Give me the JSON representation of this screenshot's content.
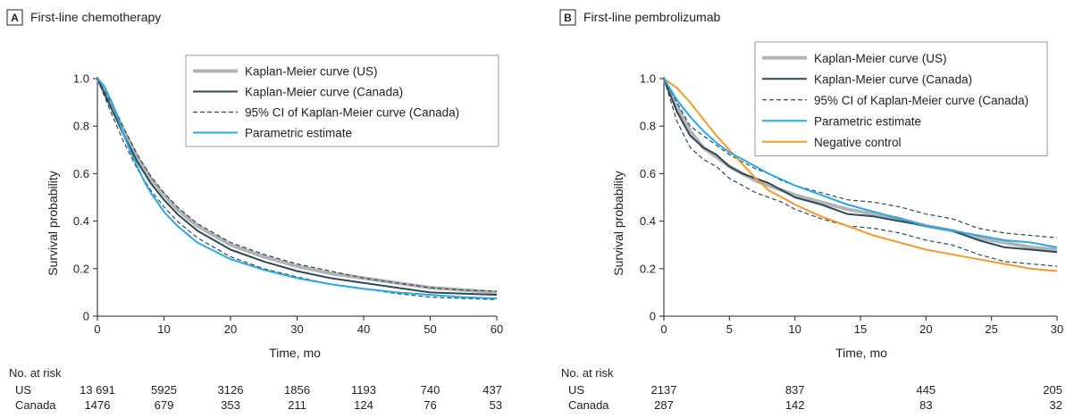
{
  "colors": {
    "us": "#b3b3b3",
    "canada": "#2c4a57",
    "ci": "#2c4a57",
    "parametric": "#29a9e0",
    "negative": "#f39a2b"
  },
  "chart_data": [
    {
      "type": "line",
      "panel_label": "A",
      "title": "First-line chemotherapy",
      "xlabel": "Time, mo",
      "ylabel": "Survival probability",
      "xlim": [
        0,
        60
      ],
      "ylim": [
        0,
        1.0
      ],
      "xticks": [
        0,
        10,
        20,
        30,
        40,
        50,
        60
      ],
      "yticks": [
        0,
        0.2,
        0.4,
        0.6,
        0.8,
        1.0
      ],
      "ytick_labels": [
        "0",
        "0.2",
        "0.4",
        "0.6",
        "0.8",
        "1.0"
      ],
      "legend_position": "top-right",
      "series": [
        {
          "name": "Kaplan-Meier curve (US)",
          "key": "us",
          "style": "thick",
          "x": [
            0,
            2,
            4,
            6,
            8,
            10,
            12,
            15,
            20,
            25,
            30,
            35,
            40,
            45,
            50,
            55,
            60
          ],
          "y": [
            1.0,
            0.9,
            0.78,
            0.67,
            0.58,
            0.51,
            0.45,
            0.38,
            0.3,
            0.25,
            0.21,
            0.18,
            0.16,
            0.14,
            0.12,
            0.11,
            0.1
          ]
        },
        {
          "name": "Kaplan-Meier curve (Canada)",
          "key": "canada",
          "style": "solid",
          "x": [
            0,
            2,
            4,
            6,
            8,
            10,
            12,
            15,
            20,
            25,
            30,
            35,
            40,
            45,
            50,
            55,
            60
          ],
          "y": [
            1.0,
            0.88,
            0.76,
            0.65,
            0.56,
            0.49,
            0.43,
            0.36,
            0.28,
            0.23,
            0.19,
            0.16,
            0.14,
            0.12,
            0.1,
            0.095,
            0.09
          ]
        },
        {
          "name": "95% CI of Kaplan-Meier curve (Canada)",
          "key": "ci",
          "style": "dashed",
          "x": [
            0,
            2,
            4,
            6,
            8,
            10,
            12,
            15,
            20,
            25,
            30,
            35,
            40,
            45,
            50,
            55,
            60
          ],
          "y": [
            1.0,
            0.9,
            0.79,
            0.68,
            0.59,
            0.52,
            0.46,
            0.39,
            0.31,
            0.26,
            0.22,
            0.19,
            0.16,
            0.14,
            0.12,
            0.11,
            0.105
          ]
        },
        {
          "name": "",
          "key": "ci",
          "style": "dashed",
          "x": [
            0,
            2,
            4,
            6,
            8,
            10,
            12,
            15,
            20,
            25,
            30,
            35,
            40,
            45,
            50,
            55,
            60
          ],
          "y": [
            1.0,
            0.86,
            0.73,
            0.62,
            0.53,
            0.46,
            0.4,
            0.33,
            0.25,
            0.2,
            0.165,
            0.135,
            0.115,
            0.095,
            0.08,
            0.075,
            0.07
          ]
        },
        {
          "name": "Parametric estimate",
          "key": "parametric",
          "style": "solid",
          "x": [
            0,
            1,
            2,
            3,
            4,
            5,
            6,
            7,
            8,
            10,
            12,
            15,
            20,
            25,
            30,
            35,
            40,
            45,
            50,
            55,
            60
          ],
          "y": [
            1.0,
            0.97,
            0.91,
            0.84,
            0.76,
            0.69,
            0.63,
            0.57,
            0.52,
            0.44,
            0.38,
            0.31,
            0.24,
            0.195,
            0.16,
            0.135,
            0.115,
            0.1,
            0.09,
            0.08,
            0.075
          ]
        }
      ],
      "risk_table": {
        "header": "No. at risk",
        "rows": [
          {
            "label": "US",
            "values": [
              "13 691",
              "5925",
              "3126",
              "1856",
              "1193",
              "740",
              "437"
            ]
          },
          {
            "label": "Canada",
            "values": [
              "1476",
              "679",
              "353",
              "211",
              "124",
              "76",
              "53"
            ]
          }
        ],
        "times": [
          0,
          10,
          20,
          30,
          40,
          50,
          60
        ]
      }
    },
    {
      "type": "line",
      "panel_label": "B",
      "title": "First-line pembrolizumab",
      "xlabel": "Time, mo",
      "ylabel": "Survival probability",
      "xlim": [
        0,
        30
      ],
      "ylim": [
        0,
        1.0
      ],
      "xticks": [
        0,
        5,
        10,
        15,
        20,
        25,
        30
      ],
      "yticks": [
        0,
        0.2,
        0.4,
        0.6,
        0.8,
        1.0
      ],
      "ytick_labels": [
        "0",
        "0.2",
        "0.4",
        "0.6",
        "0.8",
        "1.0"
      ],
      "legend_position": "top-right",
      "series": [
        {
          "name": "Kaplan-Meier curve (US)",
          "key": "us",
          "style": "thick",
          "x": [
            0,
            1,
            2,
            3,
            4,
            5,
            6,
            7,
            8,
            9,
            10,
            12,
            14,
            16,
            18,
            20,
            22,
            24,
            26,
            28,
            30
          ],
          "y": [
            1.0,
            0.88,
            0.78,
            0.71,
            0.67,
            0.63,
            0.6,
            0.57,
            0.55,
            0.53,
            0.51,
            0.48,
            0.45,
            0.43,
            0.41,
            0.38,
            0.36,
            0.33,
            0.31,
            0.29,
            0.28
          ]
        },
        {
          "name": "Kaplan-Meier curve (Canada)",
          "key": "canada",
          "style": "solid",
          "x": [
            0,
            1,
            2,
            3,
            4,
            5,
            6,
            7,
            8,
            9,
            10,
            12,
            14,
            16,
            18,
            20,
            22,
            24,
            26,
            28,
            30
          ],
          "y": [
            1.0,
            0.86,
            0.76,
            0.71,
            0.68,
            0.63,
            0.6,
            0.58,
            0.56,
            0.53,
            0.5,
            0.47,
            0.43,
            0.42,
            0.4,
            0.38,
            0.36,
            0.32,
            0.29,
            0.28,
            0.27
          ]
        },
        {
          "name": "95% CI of Kaplan-Meier curve (Canada)",
          "key": "ci",
          "style": "dashed",
          "x": [
            0,
            1,
            2,
            3,
            4,
            5,
            6,
            7,
            8,
            9,
            10,
            12,
            14,
            16,
            18,
            20,
            22,
            24,
            26,
            28,
            30
          ],
          "y": [
            1.0,
            0.9,
            0.8,
            0.76,
            0.72,
            0.68,
            0.65,
            0.62,
            0.6,
            0.57,
            0.55,
            0.52,
            0.49,
            0.48,
            0.46,
            0.43,
            0.41,
            0.37,
            0.35,
            0.34,
            0.33
          ]
        },
        {
          "name": "",
          "key": "ci",
          "style": "dashed",
          "x": [
            0,
            1,
            2,
            3,
            4,
            5,
            6,
            7,
            8,
            9,
            10,
            12,
            14,
            16,
            18,
            20,
            22,
            24,
            26,
            28,
            30
          ],
          "y": [
            1.0,
            0.82,
            0.71,
            0.66,
            0.63,
            0.58,
            0.55,
            0.52,
            0.5,
            0.48,
            0.45,
            0.41,
            0.38,
            0.37,
            0.35,
            0.32,
            0.3,
            0.26,
            0.23,
            0.22,
            0.21
          ]
        },
        {
          "name": "Parametric estimate",
          "key": "parametric",
          "style": "solid",
          "x": [
            0,
            1,
            2,
            3,
            4,
            5,
            6,
            8,
            10,
            12,
            14,
            16,
            18,
            20,
            22,
            24,
            26,
            28,
            30
          ],
          "y": [
            1.0,
            0.91,
            0.84,
            0.78,
            0.73,
            0.69,
            0.66,
            0.6,
            0.55,
            0.51,
            0.47,
            0.44,
            0.41,
            0.38,
            0.36,
            0.34,
            0.32,
            0.31,
            0.29
          ]
        },
        {
          "name": "Negative control",
          "key": "negative",
          "style": "solid",
          "x": [
            0,
            1,
            2,
            3,
            4,
            5,
            6,
            7,
            8,
            10,
            12,
            14,
            16,
            18,
            20,
            22,
            24,
            26,
            28,
            30
          ],
          "y": [
            1.0,
            0.96,
            0.9,
            0.83,
            0.76,
            0.7,
            0.64,
            0.58,
            0.53,
            0.47,
            0.42,
            0.38,
            0.34,
            0.31,
            0.28,
            0.26,
            0.24,
            0.22,
            0.2,
            0.19
          ]
        }
      ],
      "risk_table": {
        "header": "No. at risk",
        "rows": [
          {
            "label": "US",
            "values": [
              "2137",
              "837",
              "445",
              "205"
            ]
          },
          {
            "label": "Canada",
            "values": [
              "287",
              "142",
              "83",
              "32"
            ]
          }
        ],
        "times": [
          0,
          10,
          20,
          30
        ]
      }
    }
  ]
}
